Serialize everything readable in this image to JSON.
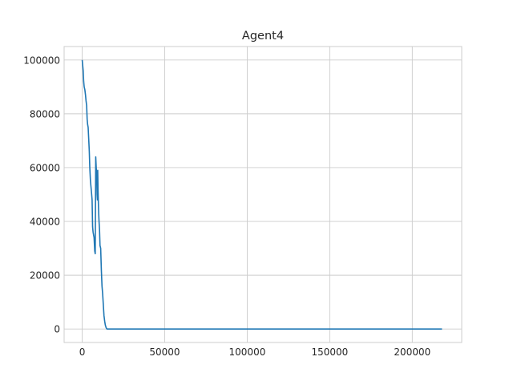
{
  "chart_data": {
    "type": "line",
    "title": "Agent4",
    "xlabel": "",
    "ylabel": "",
    "xlim": [
      -10950,
      229950
    ],
    "ylim": [
      -5000,
      105000
    ],
    "grid": true,
    "x_ticks": [
      0,
      50000,
      100000,
      150000,
      200000
    ],
    "y_ticks": [
      0,
      20000,
      40000,
      60000,
      80000,
      100000
    ],
    "series": [
      {
        "color": "#1f77b4",
        "x": [
          0,
          300,
          600,
          900,
          1200,
          1600,
          2000,
          2300,
          2700,
          3000,
          3300,
          3600,
          4000,
          4300,
          4600,
          5000,
          5300,
          5600,
          6000,
          6300,
          6600,
          6900,
          7200,
          7600,
          7900,
          8200,
          8500,
          8800,
          9000,
          9200,
          9400,
          9600,
          9800,
          10000,
          10200,
          10500,
          10800,
          11200,
          11600,
          12000,
          12400,
          12800,
          13200,
          13600,
          14000,
          14500,
          15000,
          16000,
          20000,
          50000,
          100000,
          150000,
          200000,
          218000
        ],
        "y": [
          100000,
          98000,
          96000,
          92000,
          90000,
          89000,
          87000,
          85000,
          83000,
          78000,
          76000,
          75000,
          70000,
          66000,
          60000,
          55000,
          53000,
          51000,
          48000,
          38000,
          36000,
          35000,
          34000,
          29000,
          28000,
          64000,
          60000,
          57000,
          50000,
          48000,
          59000,
          52000,
          47000,
          43000,
          40000,
          37000,
          31000,
          30000,
          22000,
          16000,
          13000,
          9000,
          5000,
          3000,
          1500,
          500,
          0,
          0,
          0,
          0,
          0,
          0,
          0,
          0
        ]
      }
    ]
  }
}
